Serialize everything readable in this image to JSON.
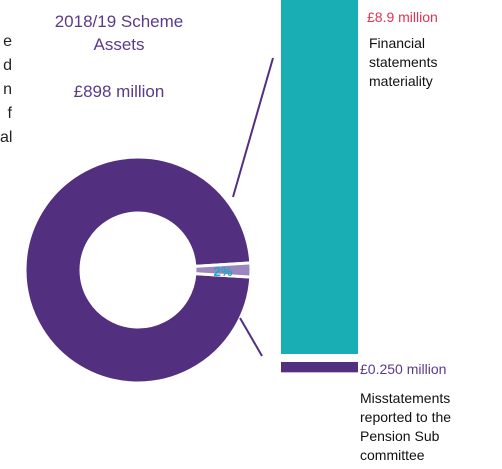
{
  "side_text": [
    "e",
    "d",
    "n",
    "f",
    "al"
  ],
  "heading": "2018/19 Scheme Assets",
  "total_assets": "£898 million",
  "chart_data": {
    "type": "bar",
    "categories": [
      "Financial statements materiality",
      "Misstatements reported to the Pension Sub committee"
    ],
    "values": [
      8.9,
      0.25
    ],
    "value_labels": [
      "£8.9 million",
      "£0.250 million"
    ],
    "unit": "£ million",
    "donut": {
      "total_label": "£898 million",
      "slices": [
        {
          "value": 98,
          "color": "#52307f"
        },
        {
          "value": 2,
          "label": "2%",
          "color": "#9b86bf"
        }
      ]
    },
    "colors": {
      "materiality_bar": "#19aeb3",
      "misstatement_bar": "#52307f",
      "materiality_label": "#e0334f",
      "misstatement_label": "#5b3a8c",
      "percent_label": "#1aa8c4"
    }
  }
}
